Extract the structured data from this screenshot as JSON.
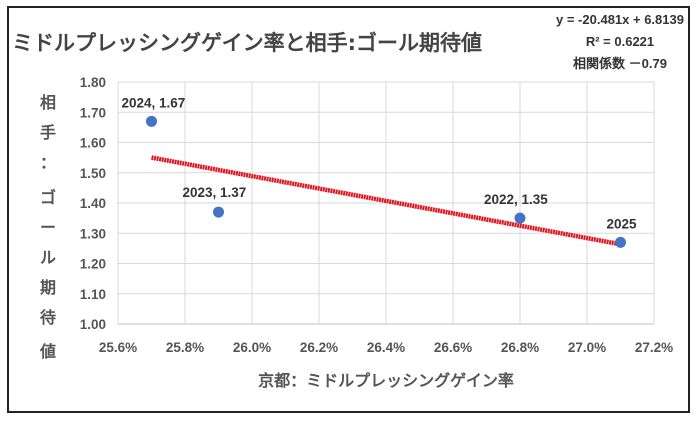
{
  "chart_data": {
    "type": "scatter",
    "title": "ミドルプレッシングゲイン率と相手:ゴール期待値",
    "xlabel": "京都：ミドルプレッシングゲイン率",
    "ylabel": "相手：ゴール期待値",
    "xlim": [
      0.256,
      0.272
    ],
    "ylim": [
      1.0,
      1.8
    ],
    "x_ticks": [
      "25.6%",
      "25.8%",
      "26.0%",
      "26.2%",
      "26.4%",
      "26.6%",
      "26.8%",
      "27.0%",
      "27.2%"
    ],
    "y_ticks": [
      "1.00",
      "1.10",
      "1.20",
      "1.30",
      "1.40",
      "1.50",
      "1.60",
      "1.70",
      "1.80"
    ],
    "grid": true,
    "points": [
      {
        "x": 0.257,
        "y": 1.67,
        "label": "2024, 1.67"
      },
      {
        "x": 0.259,
        "y": 1.37,
        "label": "2023, 1.37"
      },
      {
        "x": 0.268,
        "y": 1.35,
        "label": "2022, 1.35"
      },
      {
        "x": 0.271,
        "y": 1.27,
        "label": "2025"
      }
    ],
    "trendline": {
      "slope": -20.481,
      "intercept": 6.8139,
      "x_range": [
        0.257,
        0.271
      ]
    },
    "annotations": [
      "y = -20.481x + 6.8139",
      "R² = 0.6221",
      "相関係数 －0.79"
    ],
    "colors": {
      "points": "#4472C4",
      "trendline": "#E0141E",
      "grid": "#d9d9d9"
    }
  }
}
